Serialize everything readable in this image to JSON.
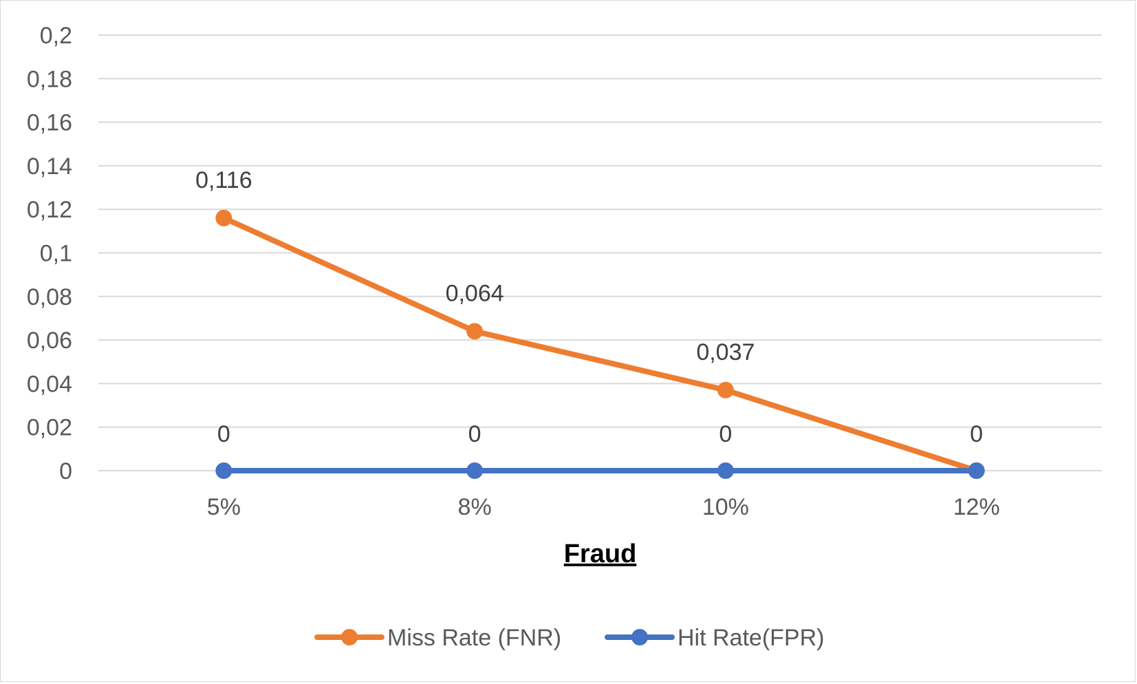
{
  "chart_data": {
    "type": "line",
    "categories": [
      "5%",
      "8%",
      "10%",
      "12%"
    ],
    "xlabel": "Fraud",
    "ylabel": "",
    "ylim": [
      0,
      0.2
    ],
    "y_ticks": [
      "0",
      "0,02",
      "0,04",
      "0,06",
      "0,08",
      "0,1",
      "0,12",
      "0,14",
      "0,16",
      "0,18",
      "0,2"
    ],
    "grid": true,
    "legend_position": "bottom",
    "series": [
      {
        "name": "Miss Rate (FNR)",
        "values": [
          0.116,
          0.064,
          0.037,
          0
        ],
        "labels": [
          "0,116",
          "0,064",
          "0,037",
          ""
        ],
        "color": "#ED7D31"
      },
      {
        "name": "Hit Rate(FPR)",
        "values": [
          0,
          0,
          0,
          0
        ],
        "labels": [
          "0",
          "0",
          "0",
          "0"
        ],
        "color": "#4472C4"
      }
    ]
  }
}
